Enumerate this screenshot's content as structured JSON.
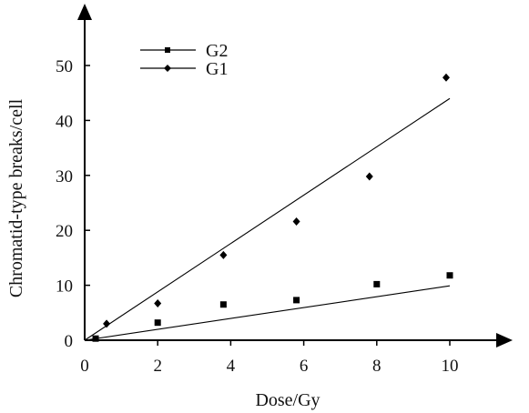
{
  "chart_data": {
    "type": "scatter",
    "title": "",
    "xlabel": "Dose/Gy",
    "ylabel": "Chromatid-type breaks/cell",
    "xlim": [
      0,
      11.3
    ],
    "ylim": [
      0,
      58
    ],
    "x_ticks": [
      0,
      2,
      4,
      6,
      8,
      10
    ],
    "y_ticks": [
      0,
      10,
      20,
      30,
      40,
      50
    ],
    "grid": false,
    "legend": "top-left",
    "series": [
      {
        "name": "G2",
        "marker": "square",
        "color": "#000000",
        "points": [
          {
            "x": 0.3,
            "y": 0.3
          },
          {
            "x": 2.0,
            "y": 3.2
          },
          {
            "x": 3.8,
            "y": 6.5
          },
          {
            "x": 5.8,
            "y": 7.3
          },
          {
            "x": 8.0,
            "y": 10.2
          },
          {
            "x": 10.0,
            "y": 11.8
          }
        ],
        "fit_line": {
          "x": [
            0,
            10
          ],
          "y": [
            0,
            9.9
          ]
        }
      },
      {
        "name": "G1",
        "marker": "diamond",
        "color": "#000000",
        "points": [
          {
            "x": 0.6,
            "y": 3.0
          },
          {
            "x": 2.0,
            "y": 6.7
          },
          {
            "x": 3.8,
            "y": 15.5
          },
          {
            "x": 5.8,
            "y": 21.6
          },
          {
            "x": 7.8,
            "y": 29.8
          },
          {
            "x": 9.9,
            "y": 47.8
          }
        ],
        "fit_line": {
          "x": [
            0,
            10
          ],
          "y": [
            0,
            44.0
          ]
        }
      }
    ]
  }
}
